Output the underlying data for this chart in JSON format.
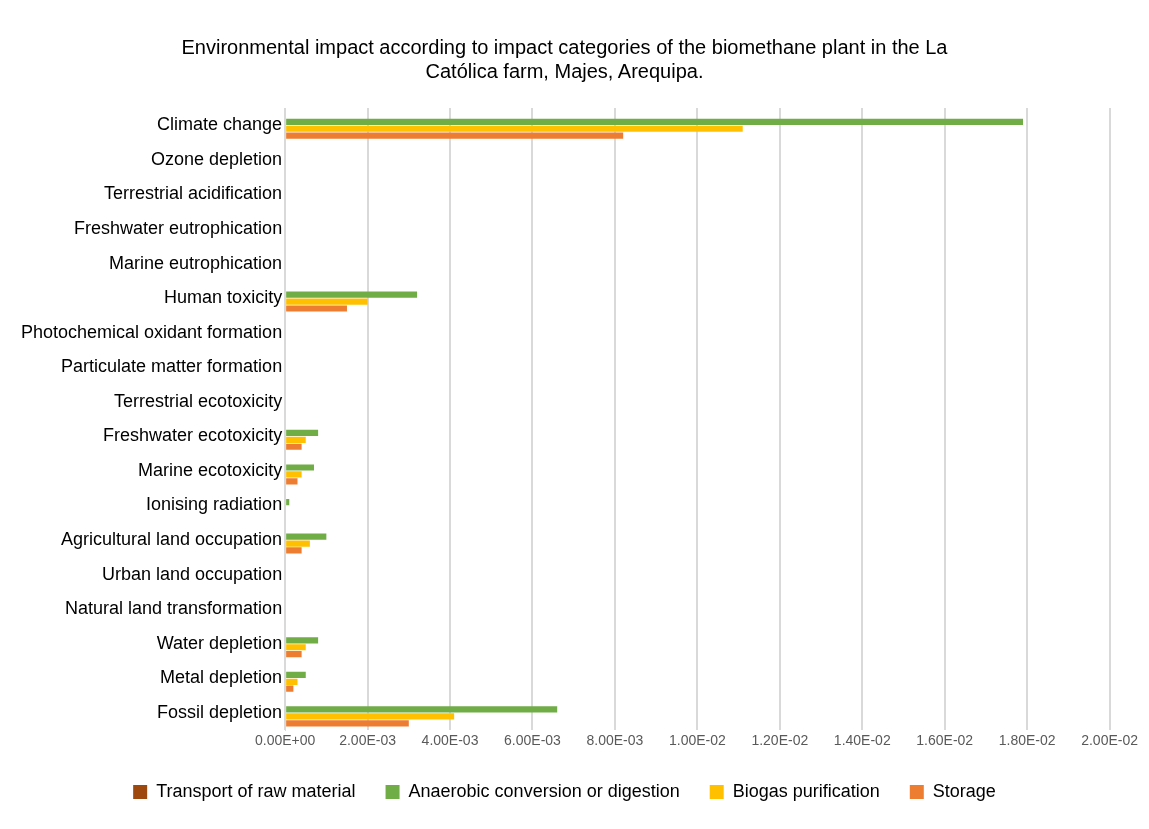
{
  "chart_data": {
    "type": "bar",
    "orientation": "horizontal",
    "title": "Environmental impact according to impact categories of the biomethane plant in the La Católica farm, Majes, Arequipa.",
    "categories": [
      "Climate change",
      "Ozone depletion",
      "Terrestrial acidification",
      "Freshwater eutrophication",
      "Marine eutrophication",
      "Human toxicity",
      "Photochemical oxidant formation",
      "Particulate matter formation",
      "Terrestrial ecotoxicity",
      "Freshwater ecotoxicity",
      "Marine ecotoxicity",
      "Ionising radiation",
      "Agricultural land occupation",
      "Urban land occupation",
      "Natural land transformation",
      "Water depletion",
      "Metal depletion",
      "Fossil depletion"
    ],
    "series": [
      {
        "name": "Transport of raw material",
        "color": "#9e480e",
        "values": [
          0,
          0,
          0,
          0,
          0,
          0,
          0,
          0,
          0,
          0,
          0,
          0,
          0,
          0,
          0,
          0,
          0,
          0
        ]
      },
      {
        "name": "Anaerobic conversion or digestion",
        "color": "#70ad47",
        "values": [
          0.0179,
          0,
          0,
          0,
          0,
          0.0032,
          0,
          0,
          0,
          0.0008,
          0.0007,
          0.0001,
          0.001,
          0,
          0,
          0.0008,
          0.0005,
          0.0066
        ]
      },
      {
        "name": "Biogas purification",
        "color": "#ffc000",
        "values": [
          0.0111,
          0,
          0,
          0,
          0,
          0.002,
          0,
          0,
          0,
          0.0005,
          0.0004,
          0,
          0.0006,
          0,
          0,
          0.0005,
          0.0003,
          0.0041
        ]
      },
      {
        "name": "Storage",
        "color": "#ed7d31",
        "values": [
          0.0082,
          0,
          0,
          0,
          0,
          0.0015,
          0,
          0,
          0,
          0.0004,
          0.0003,
          0,
          0.0004,
          0,
          0,
          0.0004,
          0.0002,
          0.003
        ]
      }
    ],
    "xlim": [
      0,
      0.02
    ],
    "xticks": [
      {
        "value": 0,
        "label": "0.00E+00"
      },
      {
        "value": 0.002,
        "label": "2.00E-03"
      },
      {
        "value": 0.004,
        "label": "4.00E-03"
      },
      {
        "value": 0.006,
        "label": "6.00E-03"
      },
      {
        "value": 0.008,
        "label": "8.00E-03"
      },
      {
        "value": 0.01,
        "label": "1.00E-02"
      },
      {
        "value": 0.012,
        "label": "1.20E-02"
      },
      {
        "value": 0.014,
        "label": "1.40E-02"
      },
      {
        "value": 0.016,
        "label": "1.60E-02"
      },
      {
        "value": 0.018,
        "label": "1.80E-02"
      },
      {
        "value": 0.02,
        "label": "2.00E-02"
      }
    ],
    "grid": "x",
    "legend": "bottom"
  }
}
